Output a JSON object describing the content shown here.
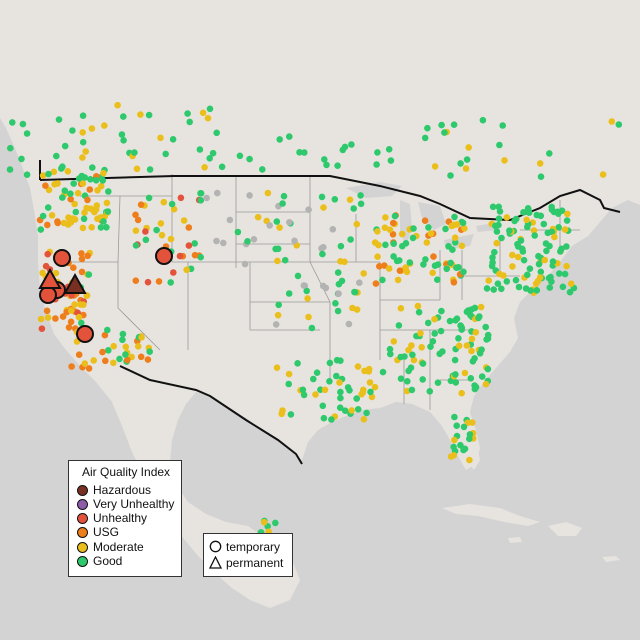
{
  "colors": {
    "land": "#e7e4df",
    "water": "#d3d3d3",
    "border": "#111111",
    "state_line": "#9a9a9a",
    "unknown_site": "#b3b3b3",
    "Hazardous": "#7a2f23",
    "Very Unhealthy": "#8e5ba8",
    "Unhealthy": "#e3533c",
    "USG": "#ee7d1b",
    "Moderate": "#ebbf1b",
    "Good": "#2ec96d"
  },
  "aqi_legend": {
    "title": "Air Quality Index",
    "items": [
      {
        "label": "Hazardous",
        "color": "#7a2f23"
      },
      {
        "label": "Very Unhealthy",
        "color": "#8e5ba8"
      },
      {
        "label": "Unhealthy",
        "color": "#e3533c"
      },
      {
        "label": "USG",
        "color": "#ee7d1b"
      },
      {
        "label": "Moderate",
        "color": "#ebbf1b"
      },
      {
        "label": "Good",
        "color": "#2ec96d"
      }
    ]
  },
  "type_legend": {
    "items": [
      {
        "label": "temporary",
        "shape": "circle-icon"
      },
      {
        "label": "permanent",
        "shape": "triangle-icon"
      }
    ]
  }
}
